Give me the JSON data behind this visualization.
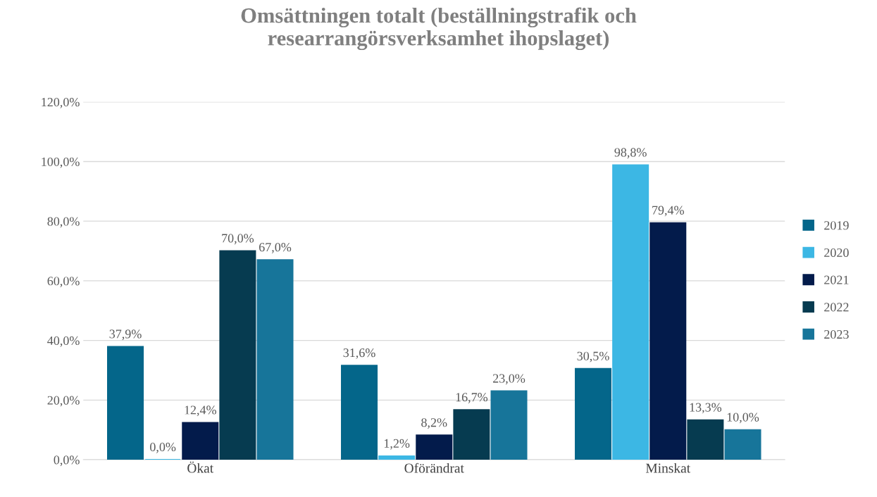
{
  "chart_data": {
    "type": "bar",
    "title": "Omsättningen totalt (beställningstrafik och researrangörsverksamhet ihopslaget)",
    "categories": [
      "Ökat",
      "Oförändrat",
      "Minskat"
    ],
    "series": [
      {
        "name": "2019",
        "color": "#04668a",
        "values": [
          37.9,
          31.6,
          30.5
        ],
        "value_labels": [
          "37,9%",
          "31,6%",
          "30,5%"
        ]
      },
      {
        "name": "2020",
        "color": "#3cb7e4",
        "values": [
          0.0,
          1.2,
          98.8
        ],
        "value_labels": [
          "0,0%",
          "1,2%",
          "98,8%"
        ]
      },
      {
        "name": "2021",
        "color": "#031b4b",
        "values": [
          12.4,
          8.2,
          79.4
        ],
        "value_labels": [
          "12,4%",
          "8,2%",
          "79,4%"
        ]
      },
      {
        "name": "2022",
        "color": "#063b50",
        "values": [
          70.0,
          16.7,
          13.3
        ],
        "value_labels": [
          "70,0%",
          "16,7%",
          "13,3%"
        ]
      },
      {
        "name": "2023",
        "color": "#17759a",
        "values": [
          67.0,
          23.0,
          10.0
        ],
        "value_labels": [
          "67,0%",
          "23,0%",
          "10,0%"
        ]
      }
    ],
    "ylim": [
      0,
      120
    ],
    "yticks": [
      {
        "value": 0,
        "label": "0,0%"
      },
      {
        "value": 20,
        "label": "20,0%"
      },
      {
        "value": 40,
        "label": "40,0%"
      },
      {
        "value": 60,
        "label": "60,0%"
      },
      {
        "value": 80,
        "label": "80,0%"
      },
      {
        "value": 100,
        "label": "100,0%"
      },
      {
        "value": 120,
        "label": "120,0%"
      }
    ],
    "grid": "y",
    "legend": "right"
  }
}
